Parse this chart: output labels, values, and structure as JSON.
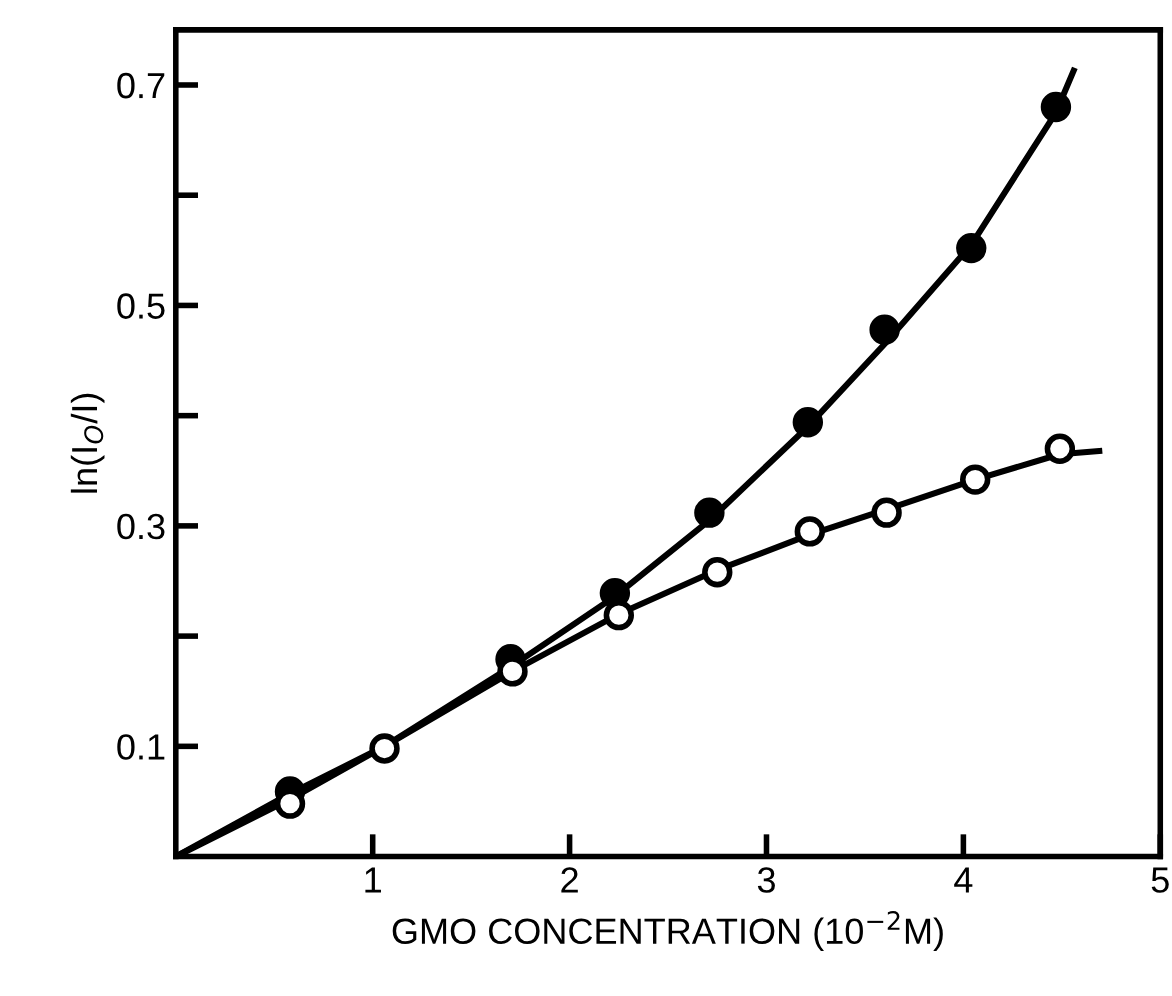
{
  "chart_data": {
    "type": "scatter",
    "xlabel": "GMO CONCENTRATION (10$^{−2}$M)",
    "ylabel": "ln(I$_{O}$/I)",
    "xlim": [
      0,
      5
    ],
    "ylim": [
      0,
      0.75
    ],
    "xticks": [
      1,
      2,
      3,
      4,
      5
    ],
    "yticks": [
      0.1,
      {
        "value": 0.2,
        "label": null
      },
      0.3,
      {
        "value": 0.4,
        "label": null
      },
      0.5,
      {
        "value": 0.6,
        "label": null
      },
      0.7
    ],
    "grid": false,
    "legend": false,
    "marker": "circle",
    "series": [
      {
        "type": "line",
        "color": "#000000",
        "marker": "none",
        "line_style": "solid",
        "x": [
          0,
          0.58,
          1.06,
          1.7,
          2.23,
          2.71,
          3.21,
          3.6,
          4.04,
          4.47,
          4.56
        ],
        "values": [
          0,
          0.057,
          0.1,
          0.172,
          0.236,
          0.305,
          0.39,
          0.465,
          0.555,
          0.675,
          0.713
        ]
      },
      {
        "type": "line",
        "color": "#000000",
        "marker": "none",
        "line_style": "solid",
        "x": [
          0,
          0.58,
          1.06,
          1.71,
          2.25,
          2.75,
          3.22,
          3.61,
          4.06,
          4.49,
          4.69
        ],
        "values": [
          0,
          0.052,
          0.1,
          0.168,
          0.22,
          0.26,
          0.292,
          0.315,
          0.342,
          0.365,
          0.368
        ]
      },
      {
        "color": "#000000",
        "x": [
          0.58,
          1.06,
          1.7,
          2.23,
          2.71,
          3.21,
          3.6,
          4.04,
          4.47
        ],
        "values": [
          0.059,
          null,
          0.179,
          0.239,
          0.312,
          0.394,
          0.478,
          0.552,
          0.68
        ]
      },
      {
        "color": "#ffffff",
        "x": [
          0.58,
          1.06,
          1.71,
          2.25,
          2.75,
          3.22,
          3.61,
          4.06,
          4.49
        ],
        "values": [
          0.048,
          0.098,
          0.168,
          0.219,
          0.258,
          0.295,
          0.312,
          0.342,
          0.37
        ]
      }
    ]
  }
}
